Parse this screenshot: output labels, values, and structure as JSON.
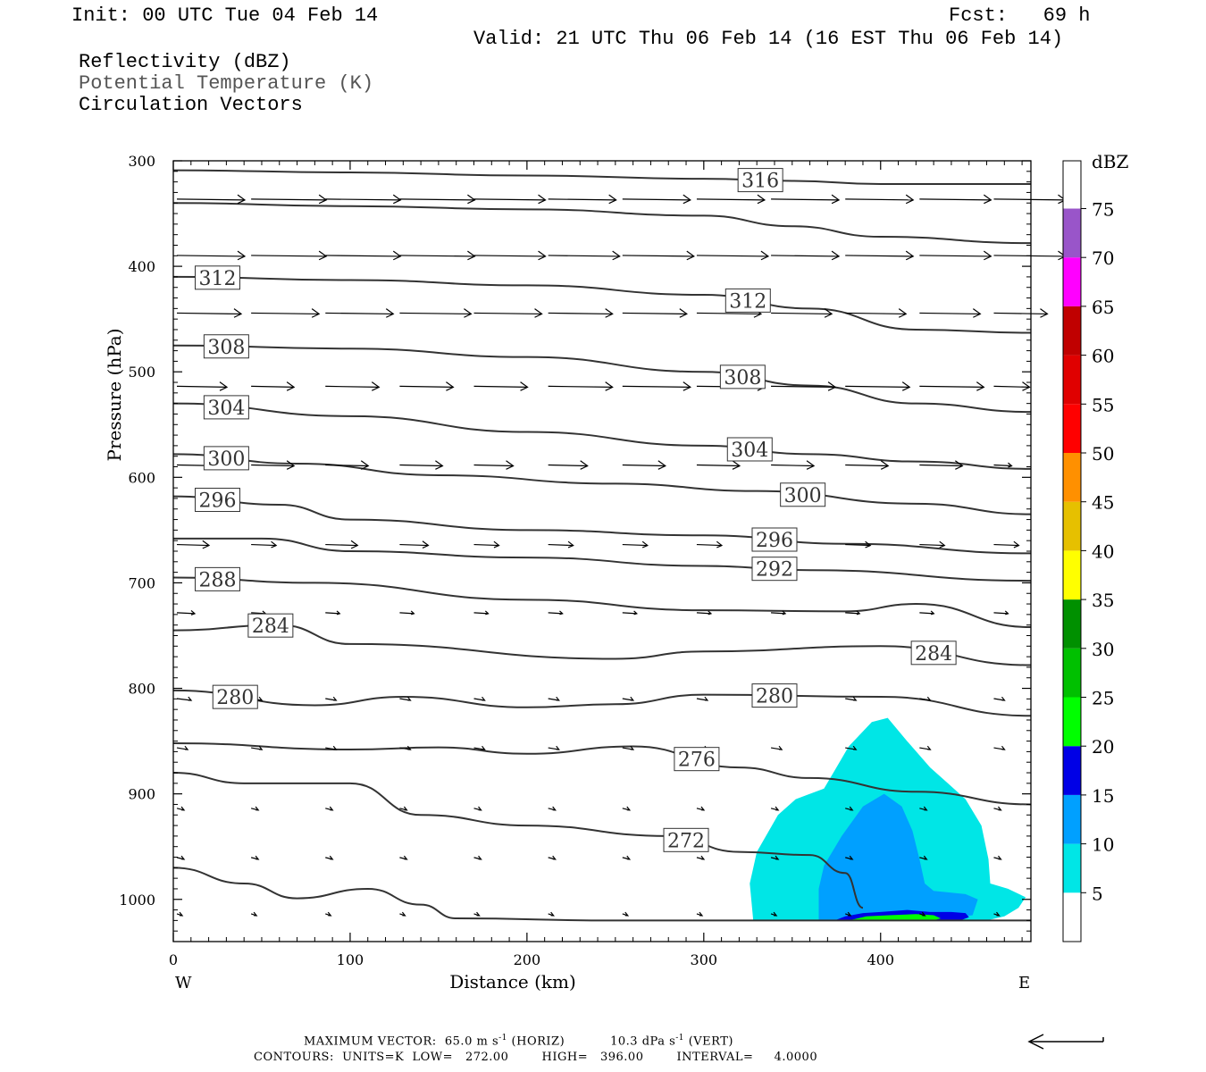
{
  "header": {
    "init": "Init: 00 UTC Tue 04 Feb 14",
    "fcst": "Fcst:   69 h",
    "valid": "Valid: 21 UTC Thu 06 Feb 14 (16 EST Thu 06 Feb 14)"
  },
  "legend_lines": [
    {
      "text": "Reflectivity (dBZ)",
      "color": "#000000"
    },
    {
      "text": "Potential Temperature (K)",
      "color": "#555555"
    },
    {
      "text": "Circulation Vectors",
      "color": "#000000"
    }
  ],
  "footer": {
    "max_vector_label": "MAXIMUM VECTOR:",
    "max_vector_horiz_value": "65.0",
    "max_vector_horiz_units": "m s",
    "max_vector_horiz_exp": "-1",
    "max_vector_horiz_tag": "(HORIZ)",
    "max_vector_vert_value": "10.3",
    "max_vector_vert_units": "dPa s",
    "max_vector_vert_exp": "-1",
    "max_vector_vert_tag": "(VERT)",
    "contours": "CONTOURS:  UNITS=K  LOW=   272.00        HIGH=   396.00        INTERVAL=     4.0000"
  },
  "chart_data": {
    "type": "cross-section",
    "xlabel": "Distance (km)",
    "ylabel": "Pressure (hPa)",
    "x_end_labels": {
      "left": "W",
      "right": "E"
    },
    "xlim": [
      0,
      485
    ],
    "ylim": [
      300,
      1040
    ],
    "x_ticks": [
      0,
      100,
      200,
      300,
      400
    ],
    "y_ticks": [
      300,
      400,
      500,
      600,
      700,
      800,
      900,
      1000
    ],
    "colorbar": {
      "title": "dBZ",
      "levels": [
        5,
        10,
        15,
        20,
        25,
        30,
        35,
        40,
        45,
        50,
        55,
        60,
        65,
        70,
        75
      ],
      "colors": [
        "#00e6e6",
        "#00a0ff",
        "#0000e6",
        "#00ff00",
        "#00c000",
        "#009000",
        "#ffff00",
        "#e6c000",
        "#ff9000",
        "#ff0000",
        "#e00000",
        "#c00000",
        "#ff00ff",
        "#9955c9",
        "#ffffff"
      ]
    },
    "theta_contours": [
      {
        "label": "316",
        "points": [
          [
            0,
            309
          ],
          [
            100,
            311
          ],
          [
            200,
            314
          ],
          [
            300,
            317
          ],
          [
            350,
            319
          ],
          [
            400,
            322
          ],
          [
            485,
            322
          ]
        ]
      },
      {
        "label": "",
        "points": [
          [
            0,
            340
          ],
          [
            100,
            343
          ],
          [
            200,
            346
          ],
          [
            300,
            352
          ],
          [
            350,
            362
          ],
          [
            400,
            372
          ],
          [
            485,
            378
          ]
        ]
      },
      {
        "label": "312",
        "points": [
          [
            0,
            410
          ],
          [
            100,
            413
          ],
          [
            200,
            418
          ],
          [
            300,
            427
          ],
          [
            360,
            440
          ],
          [
            420,
            460
          ],
          [
            485,
            463
          ]
        ]
      },
      {
        "label": "308",
        "points": [
          [
            0,
            475
          ],
          [
            100,
            478
          ],
          [
            200,
            486
          ],
          [
            300,
            500
          ],
          [
            360,
            513
          ],
          [
            420,
            530
          ],
          [
            485,
            538
          ]
        ]
      },
      {
        "label": "304",
        "points": [
          [
            0,
            530
          ],
          [
            100,
            542
          ],
          [
            200,
            557
          ],
          [
            300,
            570
          ],
          [
            360,
            578
          ],
          [
            420,
            585
          ],
          [
            485,
            592
          ]
        ]
      },
      {
        "label": "300",
        "points": [
          [
            0,
            578
          ],
          [
            70,
            587
          ],
          [
            150,
            598
          ],
          [
            250,
            606
          ],
          [
            330,
            613
          ],
          [
            420,
            625
          ],
          [
            485,
            635
          ]
        ]
      },
      {
        "label": "296",
        "points": [
          [
            0,
            618
          ],
          [
            60,
            626
          ],
          [
            100,
            640
          ],
          [
            200,
            650
          ],
          [
            300,
            655
          ],
          [
            380,
            663
          ],
          [
            485,
            672
          ]
        ]
      },
      {
        "label": "292",
        "points": [
          [
            0,
            658
          ],
          [
            50,
            658
          ],
          [
            100,
            670
          ],
          [
            200,
            676
          ],
          [
            300,
            684
          ],
          [
            360,
            688
          ],
          [
            485,
            698
          ]
        ]
      },
      {
        "label": "288",
        "points": [
          [
            0,
            695
          ],
          [
            80,
            700
          ],
          [
            200,
            716
          ],
          [
            300,
            726
          ],
          [
            380,
            727
          ],
          [
            420,
            720
          ],
          [
            485,
            742
          ]
        ]
      },
      {
        "label": "284",
        "points": [
          [
            0,
            745
          ],
          [
            60,
            740
          ],
          [
            100,
            758
          ],
          [
            250,
            772
          ],
          [
            300,
            765
          ],
          [
            400,
            760
          ],
          [
            485,
            778
          ]
        ]
      },
      {
        "label": "280",
        "points": [
          [
            0,
            802
          ],
          [
            80,
            816
          ],
          [
            130,
            808
          ],
          [
            200,
            818
          ],
          [
            250,
            815
          ],
          [
            300,
            806
          ],
          [
            400,
            808
          ],
          [
            485,
            826
          ]
        ]
      },
      {
        "label": "276",
        "points": [
          [
            0,
            852
          ],
          [
            100,
            858
          ],
          [
            150,
            856
          ],
          [
            200,
            862
          ],
          [
            260,
            855
          ],
          [
            320,
            875
          ],
          [
            360,
            885
          ],
          [
            420,
            898
          ],
          [
            485,
            910
          ]
        ]
      },
      {
        "label": "272",
        "points": [
          [
            0,
            880
          ],
          [
            40,
            890
          ],
          [
            100,
            890
          ],
          [
            140,
            920
          ],
          [
            200,
            930
          ],
          [
            280,
            940
          ],
          [
            320,
            955
          ],
          [
            360,
            958
          ],
          [
            380,
            975
          ],
          [
            390,
            1008
          ]
        ]
      },
      {
        "label": "",
        "points": [
          [
            0,
            970
          ],
          [
            40,
            985
          ],
          [
            70,
            999
          ],
          [
            110,
            990
          ],
          [
            140,
            1005
          ],
          [
            160,
            1018
          ],
          [
            250,
            1020
          ],
          [
            350,
            1020
          ],
          [
            485,
            1020
          ]
        ]
      }
    ],
    "reflectivity_regions": [
      {
        "level": 5,
        "outline": [
          [
            328,
            1020
          ],
          [
            326,
            985
          ],
          [
            330,
            955
          ],
          [
            342,
            920
          ],
          [
            352,
            905
          ],
          [
            368,
            895
          ],
          [
            375,
            875
          ],
          [
            382,
            855
          ],
          [
            395,
            832
          ],
          [
            404,
            828
          ],
          [
            415,
            850
          ],
          [
            428,
            875
          ],
          [
            438,
            890
          ],
          [
            448,
            905
          ],
          [
            457,
            930
          ],
          [
            461,
            962
          ],
          [
            462,
            985
          ],
          [
            472,
            990
          ],
          [
            482,
            998
          ],
          [
            478,
            1008
          ],
          [
            470,
            1016
          ],
          [
            460,
            1020
          ]
        ]
      },
      {
        "level": 10,
        "outline": [
          [
            365,
            1020
          ],
          [
            365,
            990
          ],
          [
            368,
            968
          ],
          [
            378,
            940
          ],
          [
            390,
            912
          ],
          [
            402,
            900
          ],
          [
            412,
            912
          ],
          [
            418,
            935
          ],
          [
            422,
            962
          ],
          [
            425,
            985
          ],
          [
            430,
            992
          ],
          [
            448,
            995
          ],
          [
            455,
            1000
          ],
          [
            452,
            1015
          ],
          [
            430,
            1020
          ]
        ]
      },
      {
        "level": 15,
        "outline": [
          [
            374,
            1020
          ],
          [
            380,
            1016
          ],
          [
            390,
            1013
          ],
          [
            400,
            1012
          ],
          [
            415,
            1010
          ],
          [
            428,
            1012
          ],
          [
            440,
            1012
          ],
          [
            448,
            1013
          ],
          [
            450,
            1017
          ],
          [
            445,
            1020
          ]
        ]
      },
      {
        "level": 20,
        "outline": [
          [
            382,
            1020
          ],
          [
            392,
            1016
          ],
          [
            405,
            1015
          ],
          [
            420,
            1014
          ],
          [
            430,
            1015
          ],
          [
            434,
            1018
          ],
          [
            430,
            1020
          ]
        ]
      }
    ],
    "vector_rows": [
      {
        "p": 338,
        "x": [
          0,
          42,
          84,
          126,
          168,
          210,
          252,
          294,
          336,
          378,
          420,
          462
        ],
        "len": [
          38,
          42,
          42,
          42,
          40,
          38,
          38,
          38,
          38,
          38,
          40,
          40
        ]
      },
      {
        "p": 388,
        "x": [
          0,
          42,
          84,
          126,
          168,
          210,
          252,
          294,
          336,
          378,
          420,
          462
        ],
        "len": [
          38,
          42,
          42,
          42,
          40,
          40,
          40,
          40,
          38,
          38,
          40,
          40
        ]
      },
      {
        "p": 446,
        "x": [
          0,
          42,
          84,
          126,
          168,
          210,
          252,
          294,
          336,
          378,
          420,
          462
        ],
        "len": [
          36,
          38,
          38,
          40,
          38,
          36,
          36,
          36,
          34,
          34,
          34,
          30
        ]
      },
      {
        "p": 512,
        "x": [
          0,
          42,
          84,
          126,
          168,
          210,
          252,
          294,
          336,
          378,
          420,
          462
        ],
        "len": [
          28,
          24,
          30,
          30,
          30,
          36,
          38,
          38,
          36,
          36,
          36,
          20
        ]
      },
      {
        "p": 590,
        "x": [
          0,
          42,
          84,
          126,
          168,
          210,
          252,
          294,
          336,
          378,
          420,
          462
        ],
        "len": [
          26,
          24,
          24,
          24,
          22,
          22,
          24,
          24,
          24,
          24,
          24,
          10
        ]
      },
      {
        "p": 662,
        "x": [
          0,
          42,
          84,
          126,
          168,
          210,
          252,
          294,
          336,
          378,
          420,
          462
        ],
        "len": [
          18,
          14,
          18,
          16,
          14,
          14,
          14,
          14,
          14,
          14,
          14,
          14
        ]
      },
      {
        "p": 730,
        "x": [
          0,
          42,
          84,
          126,
          168,
          210,
          252,
          294,
          336,
          378,
          420,
          462
        ],
        "len": [
          10,
          8,
          8,
          8,
          8,
          8,
          8,
          8,
          8,
          8,
          8,
          8
        ]
      },
      {
        "p": 808,
        "x": [
          0,
          42,
          84,
          126,
          168,
          210,
          252,
          294,
          336,
          378,
          420,
          462
        ],
        "len": [
          8,
          6,
          6,
          6,
          6,
          6,
          6,
          6,
          6,
          6,
          6,
          6
        ]
      },
      {
        "p": 858,
        "x": [
          0,
          42,
          84,
          126,
          168,
          210,
          252,
          294,
          336,
          378,
          420,
          462
        ],
        "len": [
          6,
          6,
          6,
          6,
          6,
          6,
          6,
          6,
          6,
          6,
          6,
          6
        ]
      },
      {
        "p": 912,
        "x": [
          0,
          42,
          84,
          126,
          168,
          210,
          252,
          294,
          336,
          378,
          420,
          462
        ],
        "len": [
          4,
          4,
          4,
          4,
          4,
          4,
          4,
          4,
          4,
          4,
          4,
          4
        ]
      },
      {
        "p": 962,
        "x": [
          0,
          42,
          84,
          126,
          168,
          210,
          252,
          294,
          336,
          378,
          420,
          462
        ],
        "len": [
          4,
          4,
          4,
          4,
          4,
          4,
          4,
          4,
          4,
          4,
          4,
          4
        ]
      },
      {
        "p": 1012,
        "x": [
          0,
          42,
          84,
          126,
          168,
          210,
          252,
          294,
          336,
          378,
          420,
          462
        ],
        "len": [
          3,
          3,
          3,
          3,
          3,
          3,
          3,
          3,
          3,
          3,
          3,
          3
        ]
      }
    ]
  }
}
